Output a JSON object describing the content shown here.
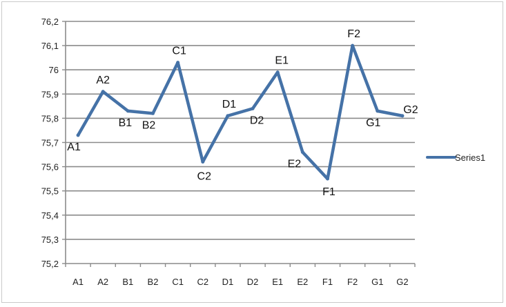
{
  "chart_data": {
    "type": "line",
    "categories": [
      "A1",
      "A2",
      "B1",
      "B2",
      "C1",
      "C2",
      "D1",
      "D2",
      "E1",
      "E2",
      "F1",
      "F2",
      "G1",
      "G2"
    ],
    "series": [
      {
        "name": "Series1",
        "values": [
          75.73,
          75.91,
          75.83,
          75.82,
          76.03,
          75.62,
          75.81,
          75.84,
          75.99,
          75.66,
          75.55,
          76.1,
          75.83,
          75.81
        ],
        "color": "#4572a7"
      }
    ],
    "point_labels": [
      "A1",
      "A2",
      "B1",
      "B2",
      "C1",
      "C2",
      "D1",
      "D2",
      "E1",
      "E2",
      "F1",
      "F2",
      "G1",
      "G2"
    ],
    "yticks": [
      "75,2",
      "75,3",
      "75,4",
      "75,5",
      "75,6",
      "75,7",
      "75,8",
      "75,9",
      "76",
      "76,1",
      "76,2"
    ],
    "ylim": [
      75.2,
      76.2
    ],
    "ystep": 0.1,
    "grid": true,
    "legend": {
      "position": "right",
      "entries": [
        "Series1"
      ]
    },
    "title": "",
    "xlabel": "",
    "ylabel": ""
  }
}
